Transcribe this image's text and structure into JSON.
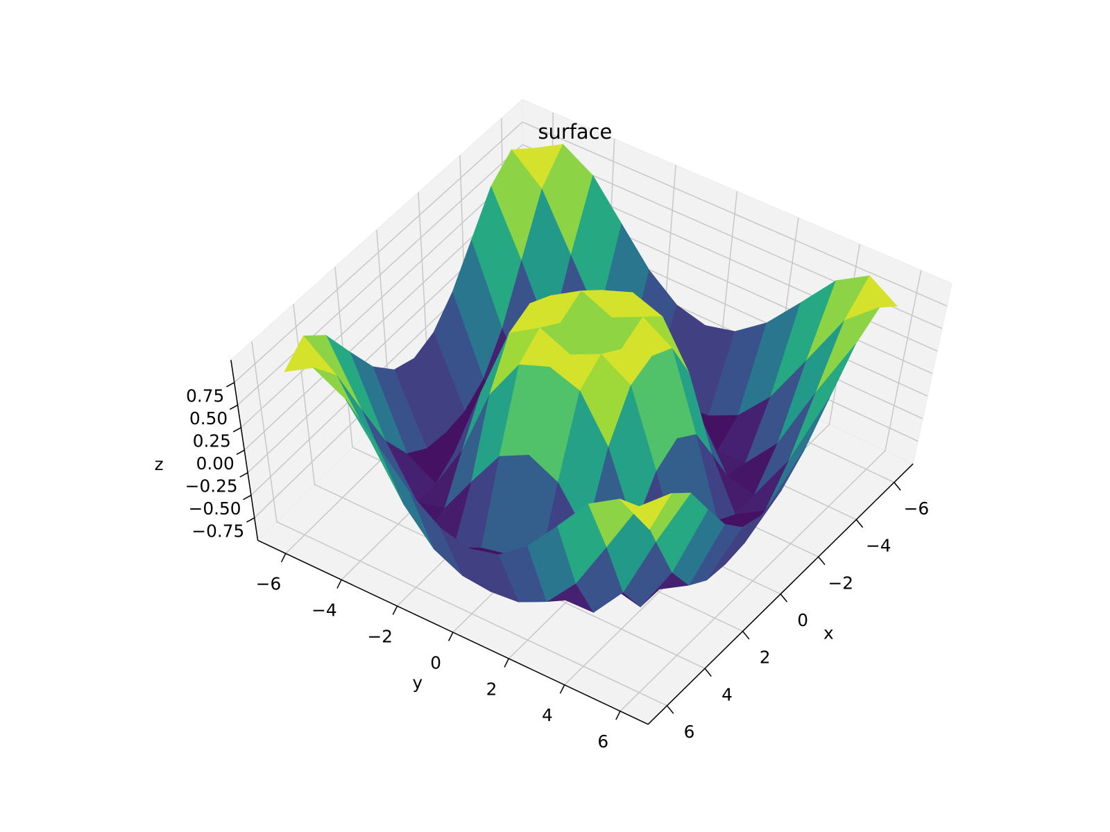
{
  "chart_data": {
    "type": "surface",
    "title": "surface",
    "xlabel": "x",
    "ylabel": "y",
    "zlabel": "z",
    "colormap": "viridis",
    "grid": true,
    "x": [
      -6,
      -5,
      -4,
      -3,
      -2,
      -1,
      0,
      1,
      2,
      3,
      4,
      5,
      6
    ],
    "y": [
      -6,
      -5,
      -4,
      -3,
      -2,
      -1,
      0,
      1,
      2,
      3,
      4,
      5,
      6
    ],
    "z": [
      [
        0.81,
        1.0,
        0.8,
        0.41,
        0.04,
        -0.2,
        -0.28,
        -0.2,
        0.04,
        0.41,
        0.8,
        1.0,
        0.81
      ],
      [
        1.0,
        0.71,
        0.12,
        -0.43,
        -0.78,
        -0.93,
        -0.96,
        -0.93,
        -0.78,
        -0.43,
        0.12,
        0.71,
        1.0
      ],
      [
        0.8,
        0.12,
        -0.59,
        -0.96,
        -0.97,
        -0.83,
        -0.76,
        -0.83,
        -0.97,
        -0.96,
        -0.59,
        0.12,
        0.8
      ],
      [
        0.41,
        -0.43,
        -0.96,
        -0.89,
        -0.45,
        -0.02,
        0.14,
        -0.02,
        -0.45,
        -0.89,
        -0.96,
        -0.43,
        0.41
      ],
      [
        0.04,
        -0.78,
        -0.97,
        -0.45,
        0.31,
        0.79,
        0.91,
        0.79,
        0.31,
        -0.45,
        -0.97,
        -0.78,
        0.04
      ],
      [
        -0.2,
        -0.93,
        -0.83,
        -0.02,
        0.79,
        0.99,
        0.84,
        0.99,
        0.79,
        -0.02,
        -0.83,
        -0.93,
        -0.2
      ],
      [
        -0.28,
        -0.96,
        -0.76,
        0.14,
        0.91,
        0.84,
        0,
        0.84,
        0.91,
        0.14,
        -0.76,
        -0.96,
        -0.28
      ],
      [
        -0.2,
        -0.93,
        -0.83,
        -0.02,
        0.79,
        0.99,
        0.84,
        0.99,
        0.79,
        -0.02,
        -0.83,
        -0.93,
        -0.2
      ],
      [
        0.04,
        -0.78,
        -0.97,
        -0.45,
        0.31,
        0.79,
        0.91,
        0.79,
        0.31,
        -0.45,
        -0.97,
        -0.78,
        0.04
      ],
      [
        0.41,
        -0.43,
        -0.96,
        -0.89,
        -0.45,
        -0.02,
        0.14,
        -0.02,
        -0.45,
        -0.89,
        -0.96,
        -0.43,
        0.41
      ],
      [
        0.8,
        0.12,
        -0.59,
        -0.96,
        -0.97,
        -0.83,
        -0.76,
        -0.83,
        -0.97,
        -0.96,
        -0.59,
        0.12,
        0.8
      ],
      [
        1.0,
        0.71,
        0.12,
        -0.43,
        -0.78,
        -0.93,
        -0.96,
        -0.93,
        -0.78,
        -0.43,
        0.12,
        0.71,
        1.0
      ],
      [
        0.81,
        1.0,
        0.8,
        0.41,
        0.04,
        -0.2,
        -0.28,
        -0.2,
        0.04,
        0.41,
        0.8,
        1.0,
        0.81
      ]
    ],
    "xlim": [
      -7,
      7
    ],
    "ylim": [
      -7,
      7
    ],
    "zlim": [
      -1,
      1
    ],
    "xticks": [
      {
        "value": -6,
        "label": "−6"
      },
      {
        "value": -4,
        "label": "−4"
      },
      {
        "value": -2,
        "label": "−2"
      },
      0,
      2,
      4,
      6
    ],
    "yticks": [
      {
        "value": -6,
        "label": "−6"
      },
      {
        "value": -4,
        "label": "−4"
      },
      {
        "value": -2,
        "label": "−2"
      },
      0,
      2,
      4,
      6
    ],
    "zticks": [
      {
        "value": -0.75,
        "label": "−0.75"
      },
      {
        "value": -0.5,
        "label": "−0.50"
      },
      {
        "value": -0.25,
        "label": "−0.25"
      },
      {
        "value": 0,
        "label": "0.00"
      },
      0.25,
      {
        "value": 0.5,
        "label": "0.50"
      },
      0.75
    ]
  }
}
